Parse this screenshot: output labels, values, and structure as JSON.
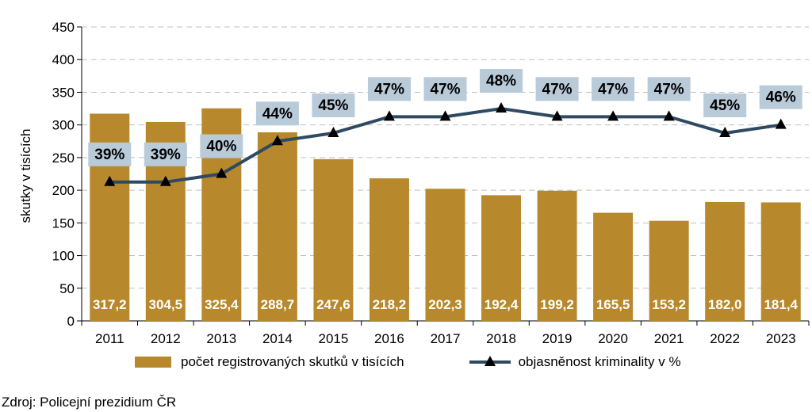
{
  "chart_data": {
    "type": "bar",
    "categories": [
      "2011",
      "2012",
      "2013",
      "2014",
      "2015",
      "2016",
      "2017",
      "2018",
      "2019",
      "2020",
      "2021",
      "2022",
      "2023"
    ],
    "series": [
      {
        "name": "počet registrovaných skutků v tisících",
        "type": "bar",
        "axis": "left",
        "values": [
          317.2,
          304.5,
          325.4,
          288.7,
          247.6,
          218.2,
          202.3,
          192.4,
          199.2,
          165.5,
          153.2,
          182.0,
          181.4
        ],
        "labels": [
          "317,2",
          "304,5",
          "325,4",
          "288,7",
          "247,6",
          "218,2",
          "202,3",
          "192,4",
          "199,2",
          "165,5",
          "153,2",
          "182,0",
          "181,4"
        ],
        "color": "#B8892C"
      },
      {
        "name": "objasněnost kriminality v %",
        "type": "line",
        "axis": "secondary (no printed scale)",
        "values": [
          39,
          39,
          40,
          44,
          45,
          47,
          47,
          48,
          47,
          47,
          47,
          45,
          46
        ],
        "labels": [
          "39%",
          "39%",
          "40%",
          "44%",
          "45%",
          "47%",
          "47%",
          "48%",
          "47%",
          "47%",
          "47%",
          "45%",
          "46%"
        ],
        "color": "#2E4A62"
      }
    ],
    "ylabel": "skutky v tisících",
    "ylim": [
      0,
      450
    ],
    "yticks": [
      0,
      50,
      100,
      150,
      200,
      250,
      300,
      350,
      400,
      450
    ],
    "grid": true,
    "legend_placement": "bottom"
  },
  "source": "Zdroj: Policejní prezidium ČR",
  "colors": {
    "bar": "#B8892C",
    "line": "#2E4A62",
    "marker": "#000000",
    "pct_label_bg": "#B9CAD9",
    "grid": "#BFBFBF"
  }
}
